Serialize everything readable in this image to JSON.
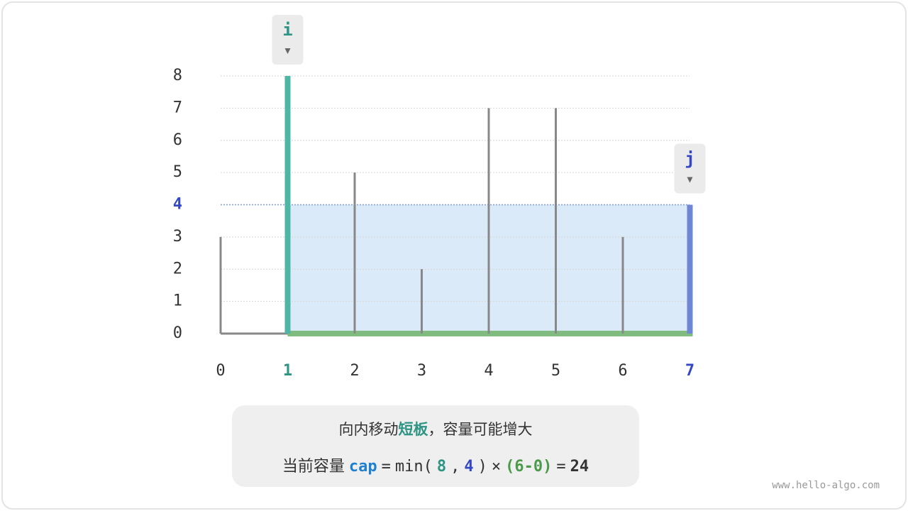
{
  "chart_data": {
    "type": "container",
    "categories": [
      "0",
      "1",
      "2",
      "3",
      "4",
      "5",
      "6",
      "7"
    ],
    "values": [
      3,
      8,
      5,
      2,
      7,
      7,
      3,
      4
    ],
    "color": "#888888",
    "ylim": [
      0,
      8
    ],
    "yticks": [
      0,
      1,
      2,
      3,
      4,
      5,
      6,
      7,
      8
    ],
    "grid": true,
    "water_level": 4,
    "water_color": "#dbeaf8",
    "floor_color": "#80bb80",
    "pointers": [
      {
        "label": "i",
        "index": 1,
        "color": "#2e9484",
        "bar_color": "#4db6a4"
      },
      {
        "label": "j",
        "index": 7,
        "color": "#3447c4",
        "bar_color": "#6f86d6"
      }
    ]
  },
  "caption": {
    "line1": [
      {
        "text": "向内移动",
        "color": "#333333"
      },
      {
        "text": "短板",
        "color": "#2e9484",
        "bold": true
      },
      {
        "text": "，容量可能增大",
        "color": "#333333"
      }
    ],
    "line2": [
      {
        "text": "当前容量",
        "color": "#333333"
      },
      {
        "text": "cap",
        "color": "#1f7fd0",
        "bold": true
      },
      {
        "text": "=",
        "color": "#333333"
      },
      {
        "text": "min(",
        "color": "#333333"
      },
      {
        "text": "8",
        "color": "#2e9484",
        "bold": true
      },
      {
        "text": ",",
        "color": "#333333"
      },
      {
        "text": "4",
        "color": "#3447c4",
        "bold": true
      },
      {
        "text": ")",
        "color": "#333333"
      },
      {
        "text": "×",
        "color": "#333333"
      },
      {
        "text": "(6-0)",
        "color": "#4a9a4a",
        "bold": true
      },
      {
        "text": "=",
        "color": "#333333"
      },
      {
        "text": "24",
        "color": "#333333",
        "bold": true
      }
    ]
  },
  "watermark": "www.hello-algo.com"
}
